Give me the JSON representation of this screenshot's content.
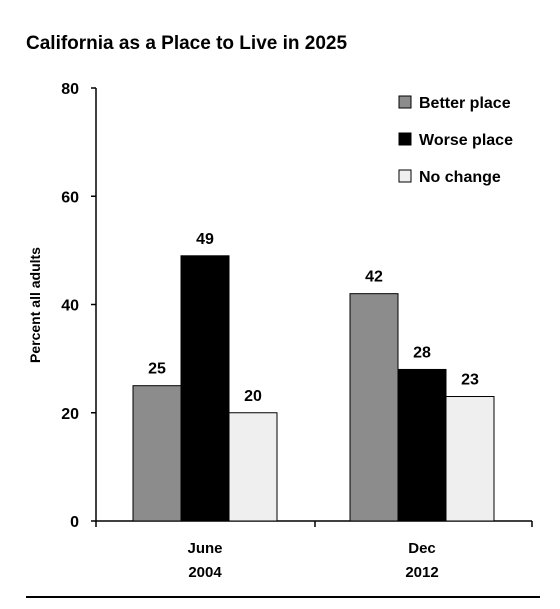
{
  "chart_data": {
    "type": "bar",
    "title": "California as a Place to Live in 2025",
    "ylabel": "Percent all adults",
    "xlabel": "",
    "ylim": [
      0,
      80
    ],
    "yticks": [
      0,
      20,
      40,
      60,
      80
    ],
    "categories": [
      [
        "June",
        "2004"
      ],
      [
        "Dec",
        "2012"
      ]
    ],
    "series": [
      {
        "name": "Better place",
        "values": [
          25,
          42
        ],
        "color": "#8c8c8c"
      },
      {
        "name": "Worse place",
        "values": [
          49,
          28
        ],
        "color": "#000000"
      },
      {
        "name": "No change",
        "values": [
          20,
          23
        ],
        "color": "#efefef"
      }
    ],
    "data_labels": true,
    "legend_position": "top-right",
    "grid": false
  }
}
